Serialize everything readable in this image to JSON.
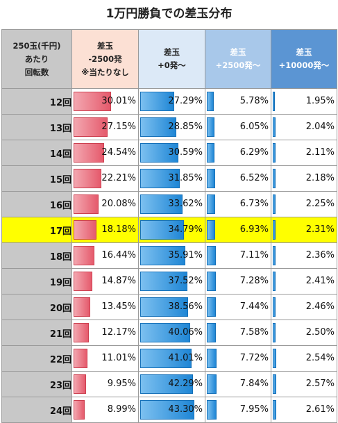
{
  "title": "1万円勝負での差玉分布",
  "headers": [
    [
      "250玉(千円)",
      "あたり",
      "回転数"
    ],
    [
      "差玉",
      "-2500発",
      "※当たりなし"
    ],
    [
      "差玉",
      "+0発～"
    ],
    [
      "差玉",
      "+2500発～"
    ],
    [
      "差玉",
      "+10000発～"
    ]
  ],
  "highlight_row": "17回",
  "colors": {
    "highlight": "#ffff00",
    "neg_bar": "#e55a6c",
    "pos_bar": "#1f86d5"
  },
  "rows": [
    {
      "label": "12回",
      "values": [
        "30.01%",
        "27.29%",
        "5.78%",
        "1.95%"
      ],
      "pct": [
        30.01,
        27.29,
        5.78,
        1.95
      ]
    },
    {
      "label": "13回",
      "values": [
        "27.15%",
        "28.85%",
        "6.05%",
        "2.04%"
      ],
      "pct": [
        27.15,
        28.85,
        6.05,
        2.04
      ]
    },
    {
      "label": "14回",
      "values": [
        "24.54%",
        "30.59%",
        "6.29%",
        "2.11%"
      ],
      "pct": [
        24.54,
        30.59,
        6.29,
        2.11
      ]
    },
    {
      "label": "15回",
      "values": [
        "22.21%",
        "31.85%",
        "6.52%",
        "2.18%"
      ],
      "pct": [
        22.21,
        31.85,
        6.52,
        2.18
      ]
    },
    {
      "label": "16回",
      "values": [
        "20.08%",
        "33.62%",
        "6.73%",
        "2.25%"
      ],
      "pct": [
        20.08,
        33.62,
        6.73,
        2.25
      ]
    },
    {
      "label": "17回",
      "values": [
        "18.18%",
        "34.79%",
        "6.93%",
        "2.31%"
      ],
      "pct": [
        18.18,
        34.79,
        6.93,
        2.31
      ]
    },
    {
      "label": "18回",
      "values": [
        "16.44%",
        "35.91%",
        "7.11%",
        "2.36%"
      ],
      "pct": [
        16.44,
        35.91,
        7.11,
        2.36
      ]
    },
    {
      "label": "19回",
      "values": [
        "14.87%",
        "37.52%",
        "7.28%",
        "2.41%"
      ],
      "pct": [
        14.87,
        37.52,
        7.28,
        2.41
      ]
    },
    {
      "label": "20回",
      "values": [
        "13.45%",
        "38.56%",
        "7.44%",
        "2.46%"
      ],
      "pct": [
        13.45,
        38.56,
        7.44,
        2.46
      ]
    },
    {
      "label": "21回",
      "values": [
        "12.17%",
        "40.06%",
        "7.58%",
        "2.50%"
      ],
      "pct": [
        12.17,
        40.06,
        7.58,
        2.5
      ]
    },
    {
      "label": "22回",
      "values": [
        "11.01%",
        "41.01%",
        "7.72%",
        "2.54%"
      ],
      "pct": [
        11.01,
        41.01,
        7.72,
        2.54
      ]
    },
    {
      "label": "23回",
      "values": [
        "9.95%",
        "42.29%",
        "7.84%",
        "2.57%"
      ],
      "pct": [
        9.95,
        42.29,
        7.84,
        2.57
      ]
    },
    {
      "label": "24回",
      "values": [
        "8.99%",
        "43.30%",
        "7.95%",
        "2.61%"
      ],
      "pct": [
        8.99,
        43.3,
        7.95,
        2.61
      ]
    }
  ]
}
